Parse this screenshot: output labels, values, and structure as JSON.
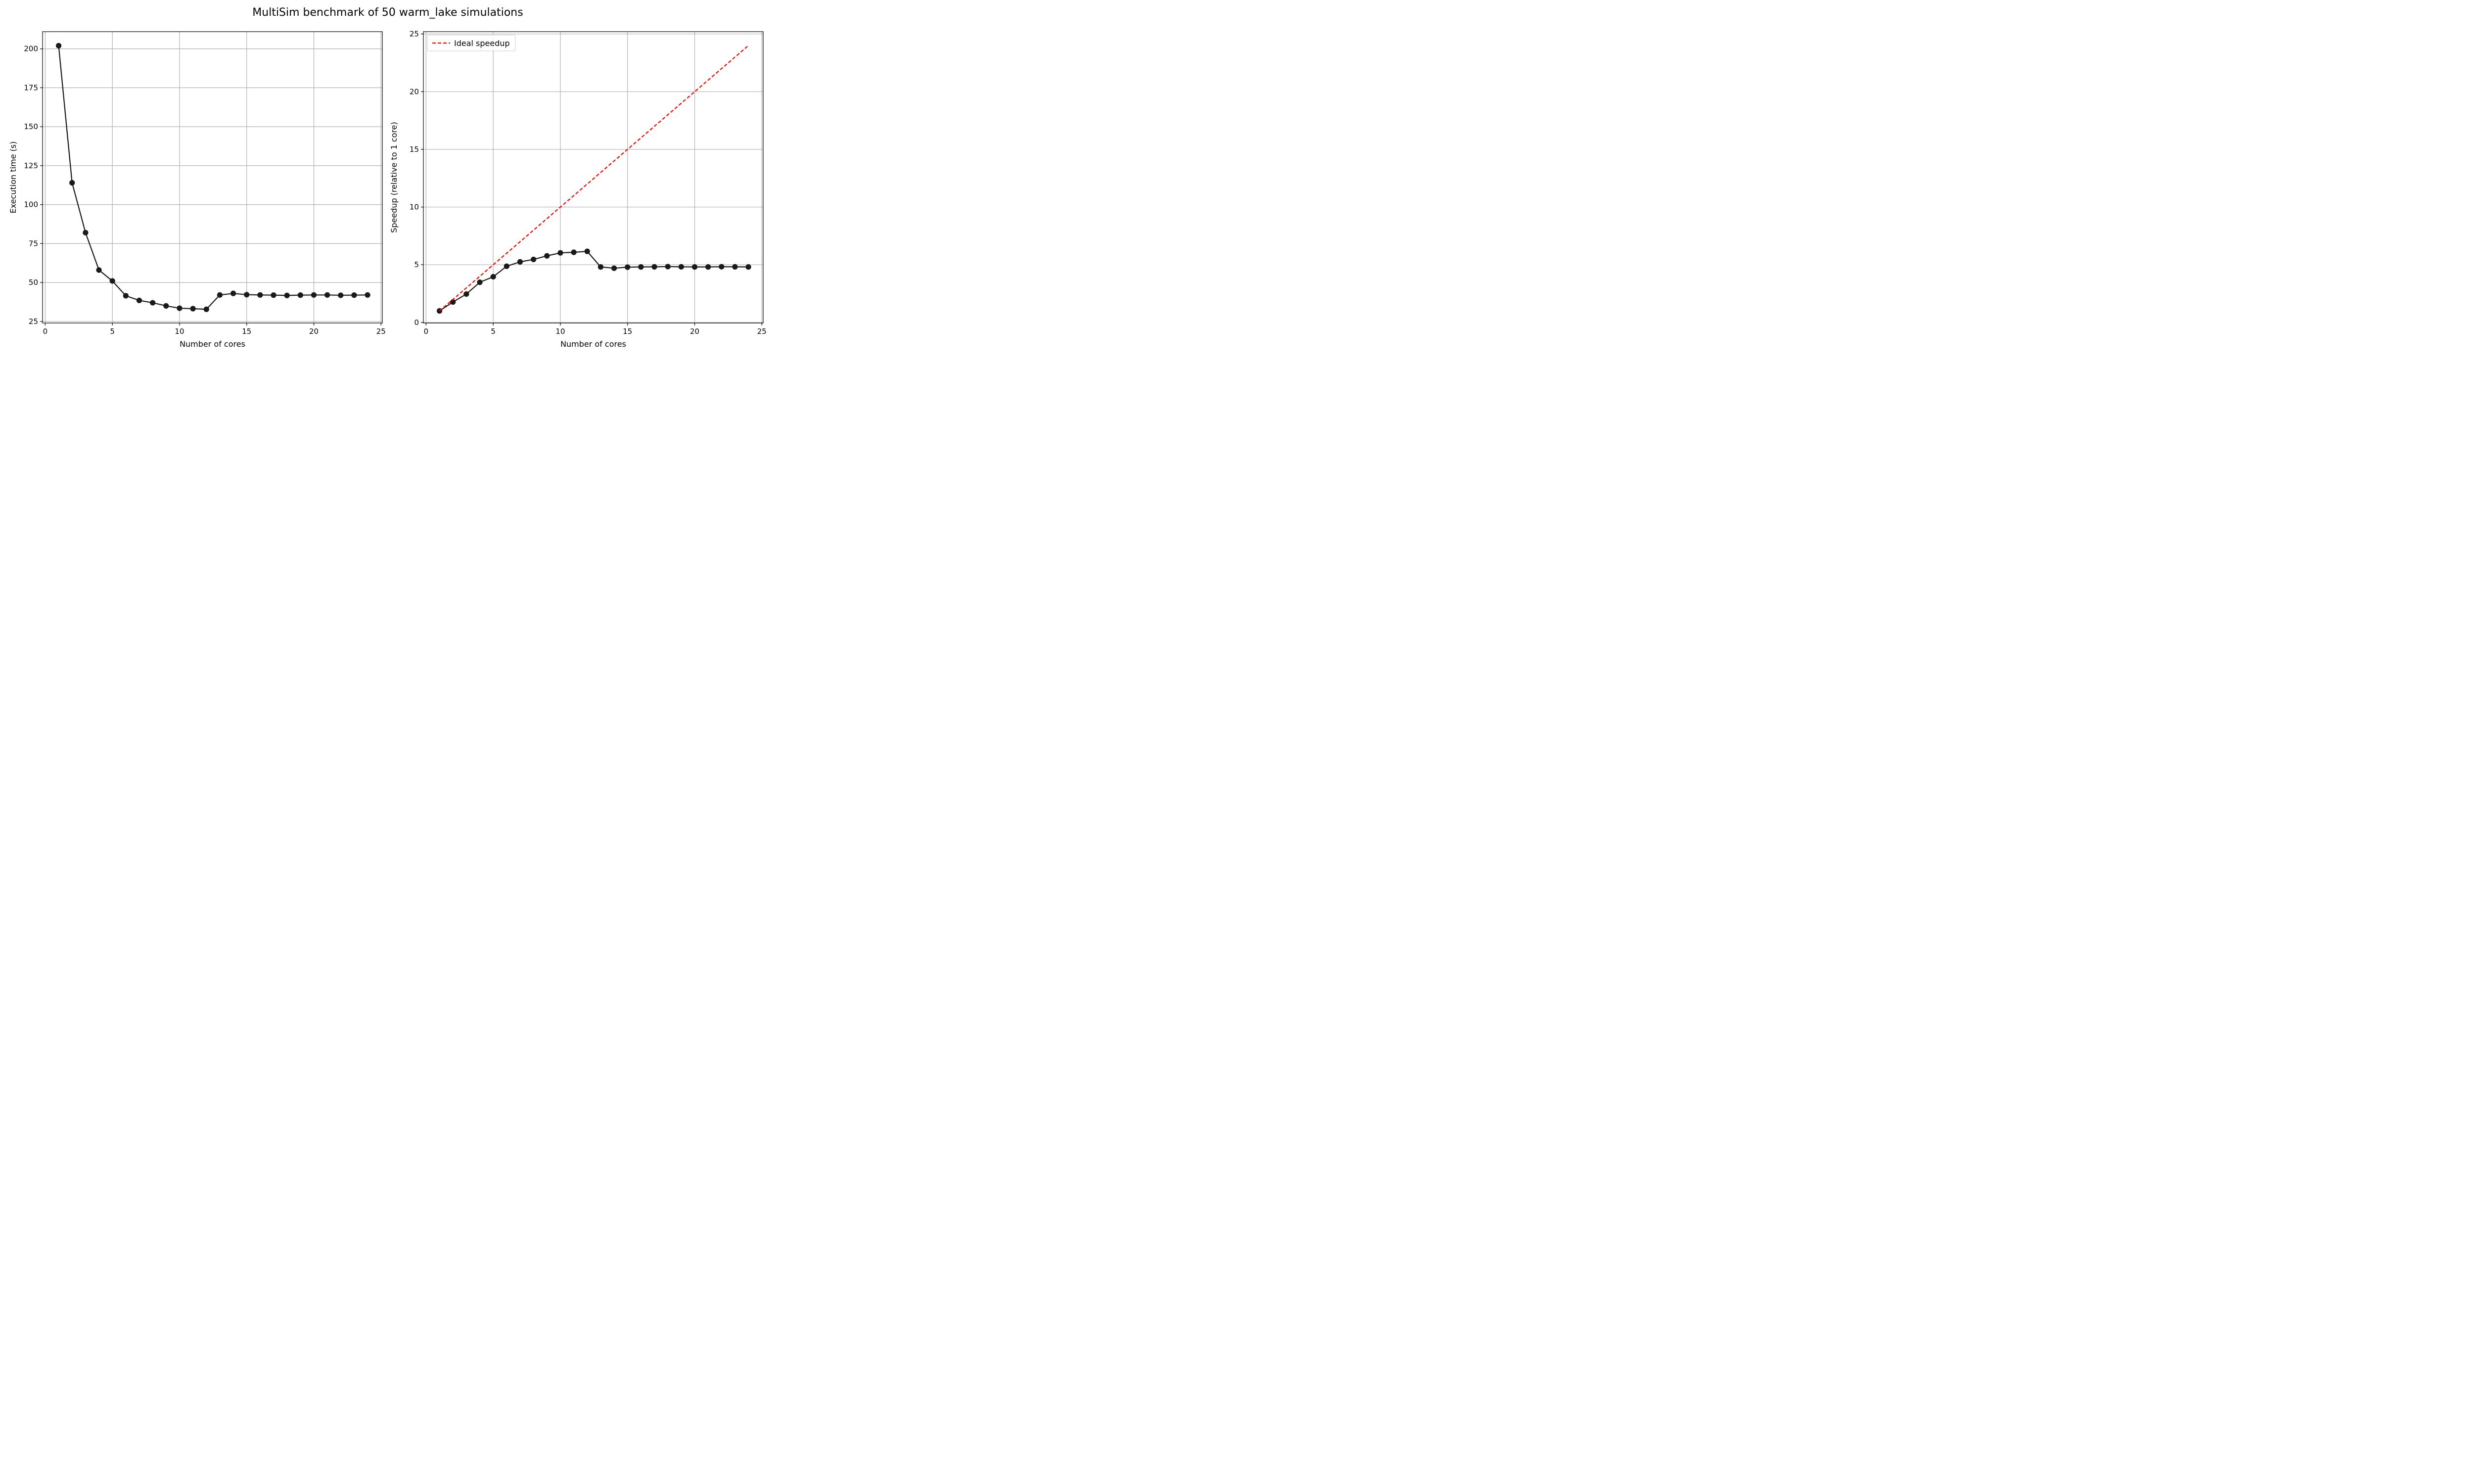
{
  "figure": {
    "title": "MultiSim benchmark of 50 warm_lake simulations"
  },
  "chart_data": [
    {
      "type": "line",
      "title": "",
      "xlabel": "Number of cores",
      "ylabel": "Execution time (s)",
      "xlim": [
        -0.2,
        25.1
      ],
      "ylim": [
        24,
        211
      ],
      "xticks": [
        0,
        5,
        10,
        15,
        20,
        25
      ],
      "yticks": [
        25,
        50,
        75,
        100,
        125,
        150,
        175,
        200
      ],
      "grid": true,
      "legend": null,
      "series": [
        {
          "name": "",
          "style": "solid",
          "marker": "circle",
          "color": "#1a1a1a",
          "x": [
            1,
            2,
            3,
            4,
            5,
            6,
            7,
            8,
            9,
            10,
            11,
            12,
            13,
            14,
            15,
            16,
            17,
            18,
            19,
            20,
            21,
            22,
            23,
            24
          ],
          "y": [
            202,
            114,
            82,
            58,
            51,
            41.5,
            38.5,
            37,
            35,
            33.5,
            33.2,
            32.8,
            42,
            43,
            42.2,
            42,
            41.9,
            41.7,
            41.9,
            42,
            42,
            41.8,
            41.9,
            42
          ]
        }
      ]
    },
    {
      "type": "line",
      "title": "",
      "xlabel": "Number of cores",
      "ylabel": "Speedup (relative to 1 core)",
      "xlim": [
        -0.2,
        25.1
      ],
      "ylim": [
        -0.05,
        25.2
      ],
      "xticks": [
        0,
        5,
        10,
        15,
        20,
        25
      ],
      "yticks": [
        0,
        5,
        10,
        15,
        20,
        25
      ],
      "grid": true,
      "legend": "top-left",
      "series": [
        {
          "name": "",
          "style": "solid",
          "marker": "circle",
          "color": "#1a1a1a",
          "x": [
            1,
            2,
            3,
            4,
            5,
            6,
            7,
            8,
            9,
            10,
            11,
            12,
            13,
            14,
            15,
            16,
            17,
            18,
            19,
            20,
            21,
            22,
            23,
            24
          ],
          "y": [
            1.0,
            1.77,
            2.46,
            3.48,
            3.96,
            4.87,
            5.25,
            5.46,
            5.77,
            6.03,
            6.08,
            6.16,
            4.81,
            4.7,
            4.79,
            4.81,
            4.82,
            4.84,
            4.82,
            4.81,
            4.81,
            4.83,
            4.82,
            4.81
          ]
        },
        {
          "name": "Ideal speedup",
          "style": "dashed",
          "marker": "none",
          "color": "#ff0000",
          "x": [
            1,
            24
          ],
          "y": [
            1,
            24
          ]
        }
      ]
    }
  ]
}
